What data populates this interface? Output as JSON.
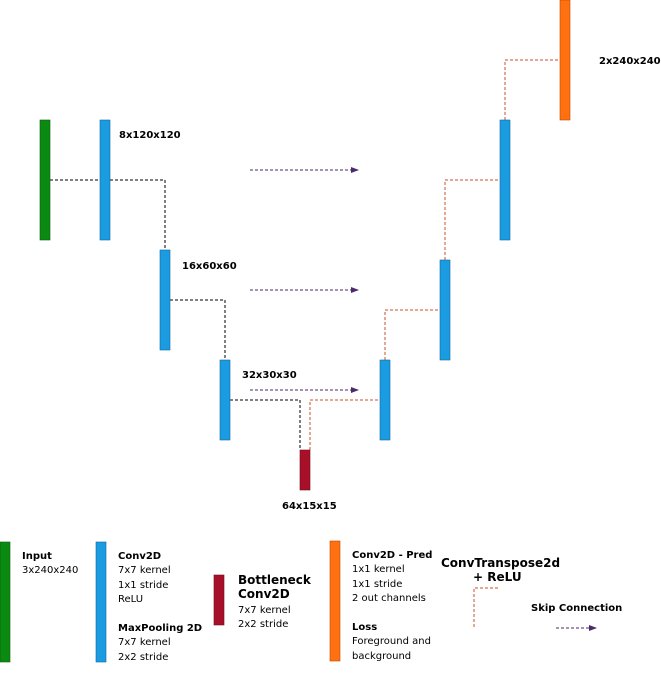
{
  "colors": {
    "input": "#0b8a12",
    "conv": "#1b9be0",
    "bottleneck": "#a8102a",
    "pred": "#ff7010",
    "skip": "#4a2a6a",
    "transpose": "#c8502a",
    "down": "#000000"
  },
  "labels": {
    "l1": "8x120x120",
    "l2": "16x60x60",
    "l3": "32x30x30",
    "l4": "64x15x15",
    "l5": "2x240x240"
  },
  "legend": {
    "input_title": "Input",
    "input_sub": "3x240x240",
    "conv_title": "Conv2D",
    "conv_l1": "7x7 kernel",
    "conv_l2": "1x1 stride",
    "conv_l3": "ReLU",
    "pool_title": "MaxPooling 2D",
    "pool_l1": "7x7 kernel",
    "pool_l2": "2x2 stride",
    "bott_title1": "Bottleneck",
    "bott_title2": "Conv2D",
    "bott_l1": "7x7 kernel",
    "bott_l2": "2x2 stride",
    "pred_title": "Conv2D - Pred",
    "pred_l1": "1x1 kernel",
    "pred_l2": "1x1 stride",
    "pred_l3": "2 out channels",
    "loss_title": "Loss",
    "loss_l1": "Foreground and",
    "loss_l2": "background",
    "transpose_title1": "ConvTranspose2d",
    "transpose_title2": "+ ReLU",
    "skip_title": "Skip Connection"
  }
}
